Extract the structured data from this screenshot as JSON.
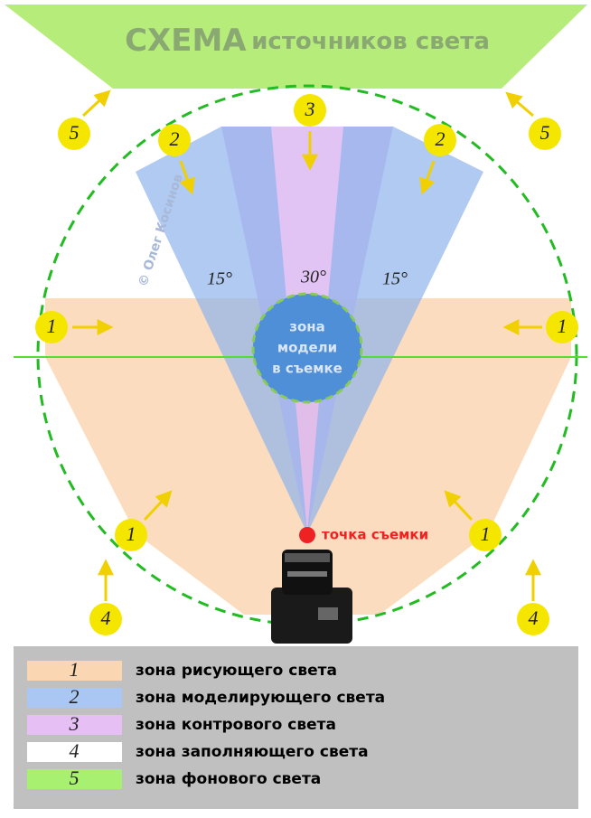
{
  "title": {
    "bold": "СХЕМА",
    "rest": "источников света"
  },
  "watermark": "© Олег Косинов",
  "angles": [
    "15°",
    "30°",
    "15°"
  ],
  "badges": [
    "5",
    "5",
    "3",
    "2",
    "2",
    "1",
    "1",
    "1",
    "1",
    "4",
    "4"
  ],
  "model_zone": [
    "зона",
    "модели",
    "в съемке"
  ],
  "shooting_point": "точка съемки",
  "legend": [
    {
      "number": "1",
      "label": "зона рисующего света"
    },
    {
      "number": "2",
      "label": "зона моделирующего света"
    },
    {
      "number": "3",
      "label": "зона контрового света"
    },
    {
      "number": "4",
      "label": "зона заполняющего света"
    },
    {
      "number": "5",
      "label": "зона фонового света"
    }
  ]
}
